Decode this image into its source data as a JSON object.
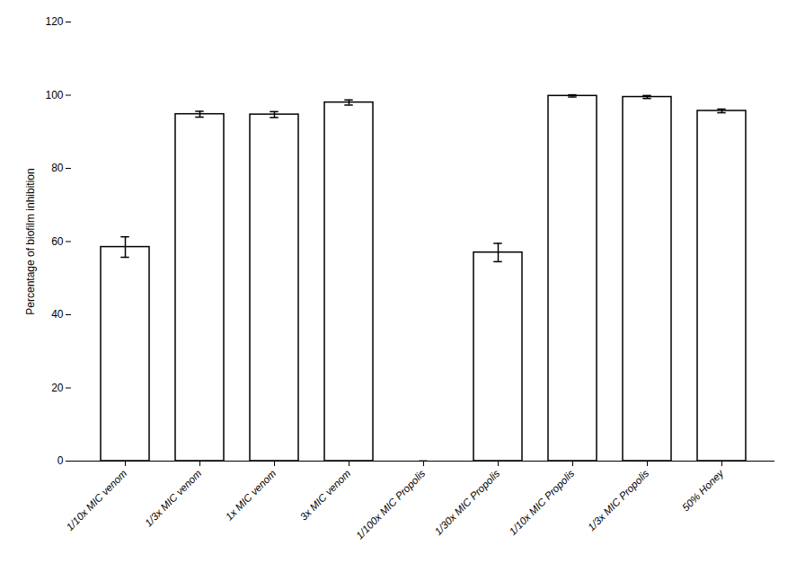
{
  "chart_data": {
    "type": "bar",
    "categories": [
      "1/10x MIC venom",
      "1/3x MIC venom",
      "1x MIC venom",
      "3x MIC venom",
      "1/100x MIC Propolis",
      "1/30x MIC Propolis",
      "1/10x MIC Propolis",
      "1/3x MIC Propolis",
      "50% Honey"
    ],
    "values": [
      58.5,
      94.8,
      94.7,
      98.0,
      0.0,
      57.0,
      99.8,
      99.5,
      95.7
    ],
    "errors": [
      2.8,
      0.8,
      0.8,
      0.7,
      0.0,
      2.5,
      0.3,
      0.4,
      0.5
    ],
    "ylabel": "Percentage of biofilm inhibition",
    "ylim": [
      0,
      120
    ],
    "yticks": [
      0,
      20,
      40,
      60,
      80,
      100,
      120
    ],
    "color": "#ffffff",
    "grid": false
  }
}
